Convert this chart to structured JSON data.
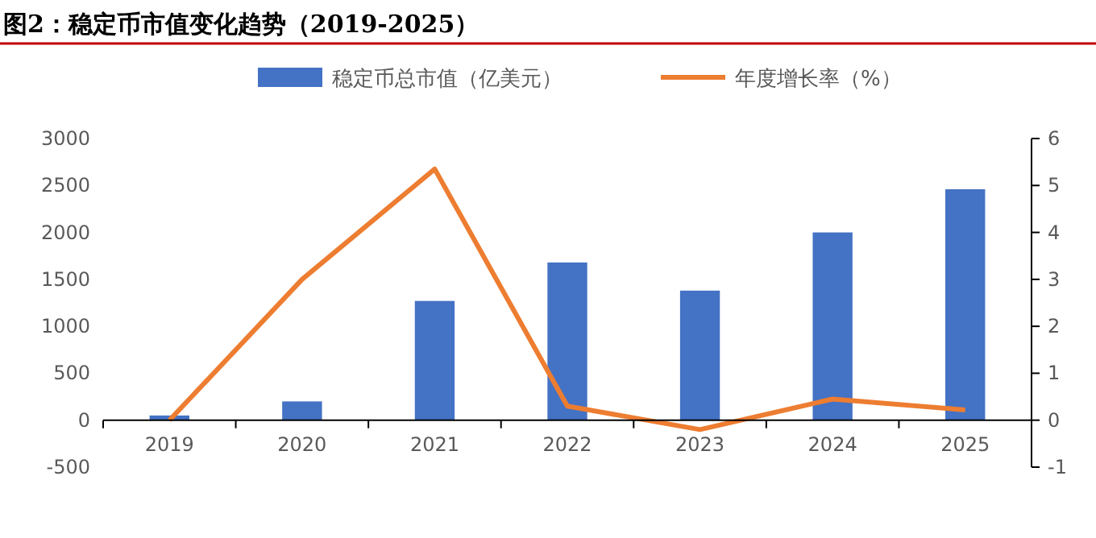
{
  "chart_data": {
    "type": "bar",
    "title": "图2：稳定币市值变化趋势（2019-2025）",
    "categories": [
      "2019",
      "2020",
      "2021",
      "2022",
      "2023",
      "2024",
      "2025"
    ],
    "series": [
      {
        "name": "稳定币总市值（亿美元）",
        "color": "#4472c4",
        "values": [
          50,
          200,
          1270,
          1680,
          1380,
          2000,
          2460
        ]
      },
      {
        "name": "年度增长率（%）",
        "type": "line",
        "axis": "y2",
        "color": "#ed7d31",
        "values": [
          0,
          3.0,
          5.35,
          0.3,
          -0.2,
          0.45,
          0.22
        ]
      }
    ],
    "ylim": [
      -500,
      3000
    ],
    "yticks": [
      -500,
      0,
      500,
      1000,
      1500,
      2000,
      2500,
      3000
    ],
    "y2lim": [
      -1,
      6
    ],
    "y2ticks": [
      -1,
      0,
      1,
      2,
      3,
      4,
      5,
      6
    ],
    "legend": "top",
    "grid": false,
    "marker": "none",
    "line_style": "solid"
  }
}
